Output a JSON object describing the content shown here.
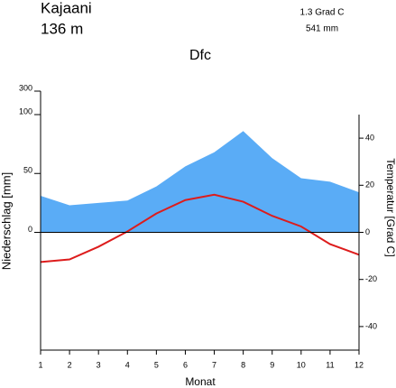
{
  "chart_data": {
    "type": "climate",
    "title": "Kajaani",
    "subtitle": "136 m",
    "climate_class": "Dfc",
    "annotations": [
      "1.3 Grad C",
      "541 mm"
    ],
    "xlabel": "Monat",
    "ylabel": "Niederschlag [mm]",
    "y2label": "Temperatur [Grad C]",
    "x": [
      1,
      2,
      3,
      4,
      5,
      6,
      7,
      8,
      9,
      10,
      11,
      12
    ],
    "xlim": [
      1,
      12
    ],
    "xticks": [
      1,
      2,
      3,
      4,
      5,
      6,
      7,
      8,
      9,
      10,
      11,
      12
    ],
    "ylim": [
      -100,
      300
    ],
    "yticks": [
      0,
      50,
      100,
      300
    ],
    "scale_break": 100,
    "y2lim": [
      -50,
      50
    ],
    "y2ticks": [
      -40,
      -20,
      0,
      20,
      40
    ],
    "series": [
      {
        "name": "Niederschlag",
        "type": "area",
        "color": "#5aacf6",
        "values": [
          31,
          23,
          25,
          27,
          39,
          56,
          68,
          86,
          63,
          46,
          43,
          34
        ]
      },
      {
        "name": "Temperatur",
        "type": "line",
        "axis": "y2",
        "color": "#dd1c1c",
        "values": [
          -12.6,
          -11.5,
          -6.1,
          0.4,
          8,
          13.7,
          16,
          13,
          7,
          2.5,
          -5,
          -9.5
        ]
      }
    ]
  }
}
